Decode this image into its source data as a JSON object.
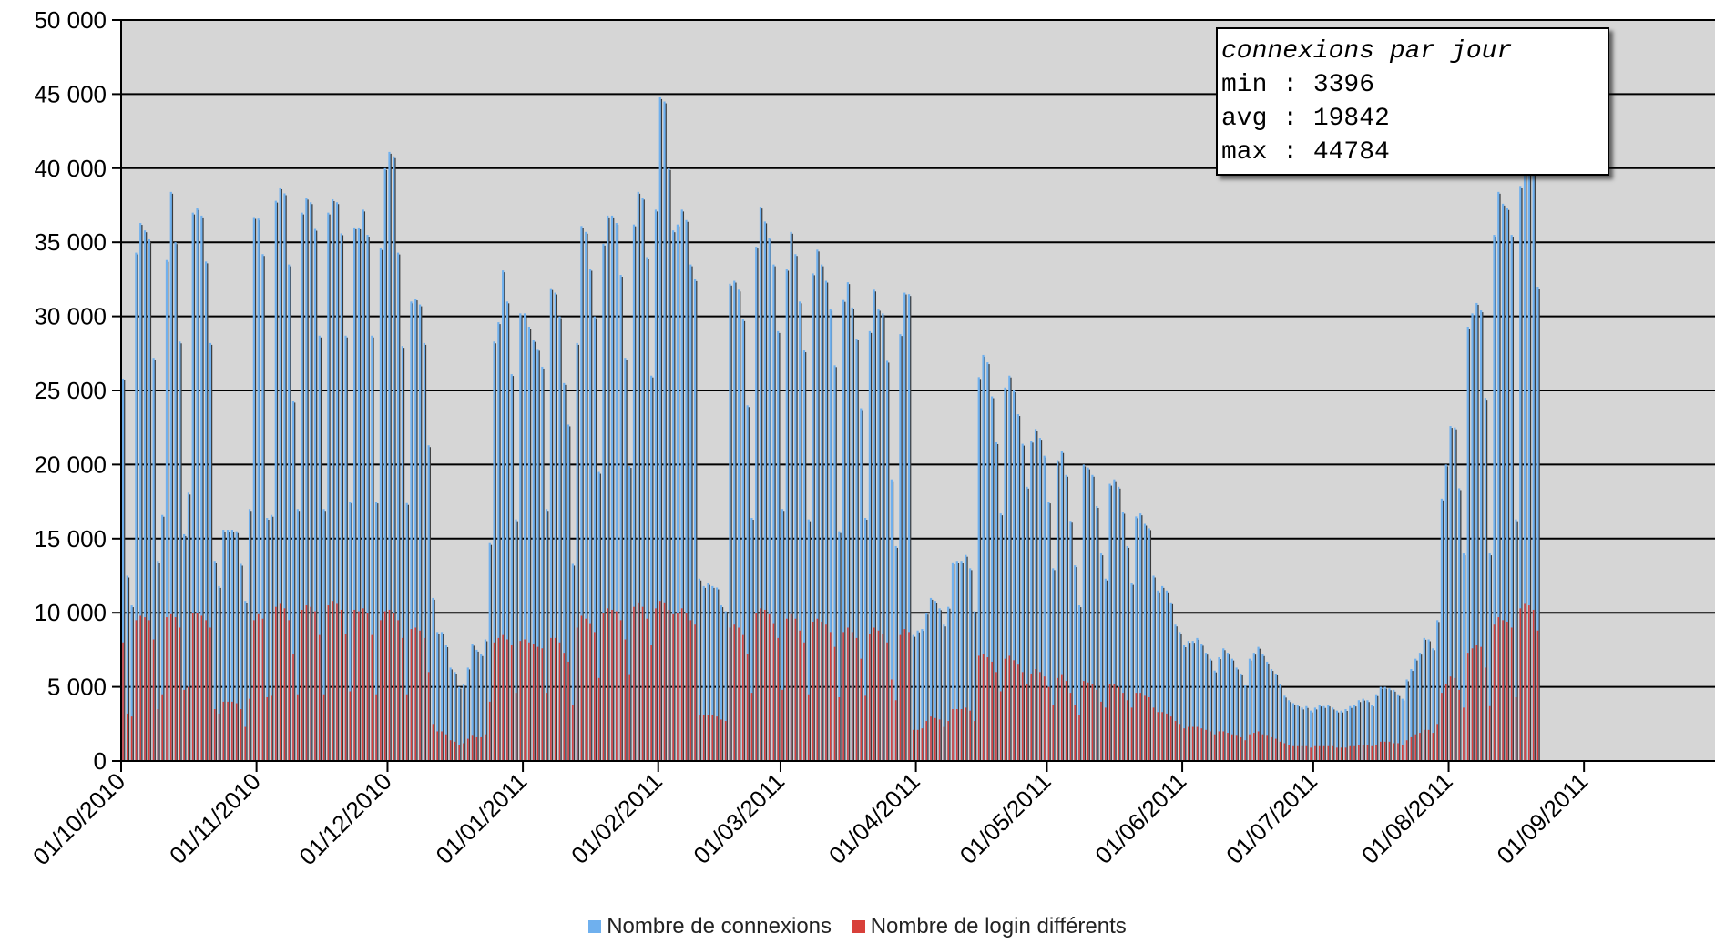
{
  "stats_box": {
    "title": "connexions par jour",
    "min": "min : 3396",
    "avg": "avg : 19842",
    "max": "max : 44784"
  },
  "legend": [
    {
      "label": "Nombre de connexions",
      "color": "#6fb0ee"
    },
    {
      "label": "Nombre de login différents",
      "color": "#d8403a"
    }
  ],
  "chart_data": {
    "type": "bar",
    "xlabel": "",
    "ylabel": "",
    "ylim": [
      0,
      50000
    ],
    "yticks": [
      "0",
      "5 000",
      "10 000",
      "15 000",
      "20 000",
      "25 000",
      "30 000",
      "35 000",
      "40 000",
      "45 000",
      "50 000"
    ],
    "xticks": [
      "01/10/2010",
      "01/11/2010",
      "01/12/2010",
      "01/01/2011",
      "01/02/2011",
      "01/03/2011",
      "01/04/2011",
      "01/05/2011",
      "01/06/2011",
      "01/07/2011",
      "01/08/2011",
      "01/09/2011"
    ],
    "x_start": "2010-10-01",
    "grid": true,
    "background": "#d6d6d6",
    "legend_position": "bottom-center",
    "series": [
      {
        "name": "Nombre de connexions",
        "color": "#6fb0ee"
      },
      {
        "name": "Nombre de login différents",
        "color": "#d8403a"
      }
    ],
    "weekly_peaks": [
      {
        "week_start": "2010-10-01",
        "connexions": [
          25800,
          12500,
          10500,
          34300,
          36300,
          35800,
          35200
        ],
        "logins": [
          8000,
          3200,
          3000,
          9500,
          9800,
          9700,
          9500
        ]
      },
      {
        "week_start": "2010-10-08",
        "connexions": [
          27200,
          13500,
          16600,
          33800,
          38400,
          35000,
          28300
        ],
        "logins": [
          8200,
          3500,
          4500,
          9700,
          9900,
          9700,
          9000
        ]
      },
      {
        "week_start": "2010-10-15",
        "connexions": [
          15300,
          18100,
          37000,
          37300,
          36800,
          33700,
          28200
        ],
        "logins": [
          4800,
          5000,
          10000,
          10000,
          9800,
          9500,
          9000
        ]
      },
      {
        "week_start": "2010-10-22",
        "connexions": [
          13500,
          11800,
          15600,
          15600,
          15600,
          15500,
          13300
        ],
        "logins": [
          3500,
          3200,
          4000,
          4000,
          4000,
          3900,
          3500
        ]
      },
      {
        "week_start": "2010-10-29",
        "connexions": [
          10800,
          17000,
          36700,
          36600,
          34200,
          16400,
          16600
        ],
        "logins": [
          2300,
          4200,
          9500,
          9900,
          9600,
          4300,
          4400
        ]
      },
      {
        "week_start": "2010-11-05",
        "connexions": [
          37800,
          38700,
          38300,
          33500,
          24300,
          17000,
          37000
        ],
        "logins": [
          10400,
          10600,
          10300,
          9500,
          7200,
          4500,
          10200
        ]
      },
      {
        "week_start": "2010-11-12",
        "connexions": [
          38000,
          37700,
          35900,
          28700,
          17000,
          37000,
          37900
        ],
        "logins": [
          10500,
          10400,
          10100,
          8500,
          4500,
          10500,
          10800
        ]
      },
      {
        "week_start": "2010-11-19",
        "connexions": [
          37700,
          35600,
          28700,
          17500,
          36000,
          36000,
          37200
        ],
        "logins": [
          10600,
          10200,
          8600,
          4700,
          10200,
          10100,
          10300
        ]
      },
      {
        "week_start": "2010-11-26",
        "connexions": [
          35500,
          28700,
          17500,
          34600,
          40000,
          41100,
          40800
        ],
        "logins": [
          10000,
          8500,
          4500,
          9500,
          10100,
          10200,
          10000
        ]
      },
      {
        "week_start": "2010-12-03",
        "connexions": [
          34300,
          28000,
          17400,
          31000,
          31200,
          30800,
          28200
        ],
        "logins": [
          9500,
          8300,
          4500,
          8900,
          9000,
          8800,
          8300
        ]
      },
      {
        "week_start": "2010-12-10",
        "connexions": [
          21300,
          11000,
          8700,
          8700,
          7800,
          6300,
          6000
        ],
        "logins": [
          6000,
          2500,
          2000,
          2000,
          1800,
          1400,
          1300
        ]
      },
      {
        "week_start": "2010-12-17",
        "connexions": [
          5000,
          5200,
          6300,
          7900,
          7500,
          7200,
          8200
        ],
        "logins": [
          1100,
          1200,
          1500,
          1700,
          1600,
          1600,
          1800
        ]
      },
      {
        "week_start": "2010-12-24",
        "connexions": [
          14700,
          28300,
          29600,
          33100,
          31000,
          26100,
          16300
        ],
        "logins": [
          4000,
          8000,
          8300,
          8500,
          8200,
          7800,
          4600
        ]
      },
      {
        "week_start": "2010-12-31",
        "connexions": [
          30200,
          30200,
          29300,
          28400,
          27800,
          26600,
          17000
        ],
        "logins": [
          8100,
          8200,
          8000,
          7900,
          7700,
          7600,
          4600
        ]
      },
      {
        "week_start": "2011-01-07",
        "connexions": [
          31900,
          31600,
          30000,
          25500,
          22700,
          13300,
          28200
        ],
        "logins": [
          8300,
          8300,
          8000,
          7300,
          6700,
          3800,
          9000
        ]
      },
      {
        "week_start": "2011-01-14",
        "connexions": [
          36100,
          35700,
          33200,
          30000,
          19500,
          34900,
          36800
        ],
        "logins": [
          9800,
          9600,
          9300,
          8700,
          5600,
          10000,
          10300
        ]
      },
      {
        "week_start": "2011-01-21",
        "connexions": [
          36800,
          36300,
          32800,
          27200,
          19900,
          36200,
          38400
        ],
        "logins": [
          10200,
          10100,
          9500,
          8200,
          5800,
          10400,
          10700
        ]
      },
      {
        "week_start": "2011-01-28",
        "connexions": [
          38000,
          34000,
          26000,
          37200,
          44784,
          44500,
          40000
        ],
        "logins": [
          10400,
          9600,
          7800,
          10300,
          10800,
          10700,
          10200
        ]
      },
      {
        "week_start": "2011-02-04",
        "connexions": [
          35800,
          36200,
          37200,
          36500,
          33500,
          32500,
          12300
        ],
        "logins": [
          9900,
          10000,
          10300,
          10000,
          9500,
          9200,
          3100
        ]
      },
      {
        "week_start": "2011-02-11",
        "connexions": [
          11800,
          12000,
          11800,
          11700,
          10500,
          10100,
          32200
        ],
        "logins": [
          3100,
          3100,
          3100,
          3000,
          2800,
          2700,
          9000
        ]
      },
      {
        "week_start": "2011-02-18",
        "connexions": [
          32400,
          31800,
          29800,
          24000,
          16400,
          34700,
          37400
        ],
        "logins": [
          9200,
          9000,
          8500,
          7200,
          4600,
          10000,
          10300
        ]
      },
      {
        "week_start": "2011-02-25",
        "connexions": [
          36400,
          35300,
          33500,
          29000,
          17000,
          33200,
          35700
        ],
        "logins": [
          10200,
          9900,
          9300,
          8300,
          4800,
          9600,
          9900
        ]
      },
      {
        "week_start": "2011-03-04",
        "connexions": [
          34200,
          31000,
          27700,
          16300,
          32900,
          34500,
          33500
        ],
        "logins": [
          9600,
          8800,
          8000,
          4500,
          9400,
          9600,
          9400
        ]
      },
      {
        "week_start": "2011-03-11",
        "connexions": [
          32400,
          30500,
          26700,
          15500,
          31100,
          32300,
          30600
        ],
        "logins": [
          9200,
          8700,
          7700,
          4300,
          8700,
          9000,
          8700
        ]
      },
      {
        "week_start": "2011-03-18",
        "connexions": [
          28500,
          23800,
          16400,
          29000,
          31800,
          30500,
          30200
        ],
        "logins": [
          8300,
          6900,
          4400,
          8600,
          9000,
          8800,
          8600
        ]
      },
      {
        "week_start": "2011-03-25",
        "connexions": [
          27000,
          19000,
          14500,
          28800,
          31600,
          31500,
          8500
        ],
        "logins": [
          8000,
          5500,
          4100,
          8500,
          8900,
          8700,
          2100
        ]
      },
      {
        "week_start": "2011-04-01",
        "connexions": [
          8800,
          8900,
          10000,
          11000,
          10800,
          10300,
          9200
        ],
        "logins": [
          2100,
          2200,
          2700,
          3000,
          2900,
          2800,
          2300
        ]
      },
      {
        "week_start": "2011-04-08",
        "connexions": [
          10400,
          13400,
          13500,
          13500,
          13900,
          13000,
          10100
        ],
        "logins": [
          2700,
          3500,
          3500,
          3500,
          3600,
          3400,
          2700
        ]
      },
      {
        "week_start": "2011-04-15",
        "connexions": [
          25900,
          27400,
          26900,
          24600,
          21500,
          16700,
          25200
        ],
        "logins": [
          7100,
          7200,
          7000,
          6700,
          6000,
          4700,
          6900
        ]
      },
      {
        "week_start": "2011-04-22",
        "connexions": [
          26000,
          25000,
          23400,
          21400,
          18500,
          21600,
          22400
        ],
        "logins": [
          7100,
          6800,
          6500,
          6000,
          5200,
          5900,
          6200
        ]
      },
      {
        "week_start": "2011-04-29",
        "connexions": [
          21800,
          20600,
          17500,
          13000,
          20300,
          20900,
          19300
        ],
        "logins": [
          6000,
          5700,
          5000,
          3800,
          5600,
          5800,
          5400
        ]
      },
      {
        "week_start": "2011-05-06",
        "connexions": [
          16200,
          13200,
          10500,
          20000,
          19800,
          19300,
          17200
        ],
        "logins": [
          4600,
          3800,
          3100,
          5400,
          5300,
          5200,
          4800
        ]
      },
      {
        "week_start": "2011-05-13",
        "connexions": [
          14000,
          12300,
          18700,
          19000,
          18500,
          16800,
          14500
        ],
        "logins": [
          4000,
          3600,
          5200,
          5200,
          5000,
          4600,
          4100
        ]
      },
      {
        "week_start": "2011-05-20",
        "connexions": [
          12000,
          16500,
          16700,
          16000,
          15700,
          12500,
          11500
        ],
        "logins": [
          3600,
          4600,
          4600,
          4400,
          4300,
          3600,
          3300
        ]
      },
      {
        "week_start": "2011-05-27",
        "connexions": [
          11800,
          11500,
          10700,
          9200,
          8700,
          7800,
          8100
        ],
        "logins": [
          3300,
          3200,
          3000,
          2700,
          2500,
          2200,
          2300
        ]
      },
      {
        "week_start": "2011-06-03",
        "connexions": [
          8100,
          8300,
          7900,
          7300,
          6900,
          6100,
          7000
        ],
        "logins": [
          2300,
          2300,
          2200,
          2100,
          2000,
          1800,
          2000
        ]
      },
      {
        "week_start": "2011-06-10",
        "connexions": [
          7600,
          7300,
          6900,
          6300,
          5900,
          5100,
          6900
        ],
        "logins": [
          2000,
          1900,
          1800,
          1700,
          1600,
          1400,
          1800
        ]
      },
      {
        "week_start": "2011-06-17",
        "connexions": [
          7300,
          7700,
          7200,
          6700,
          6200,
          5900,
          5200
        ],
        "logins": [
          1900,
          2000,
          1800,
          1700,
          1600,
          1500,
          1300
        ]
      },
      {
        "week_start": "2011-06-24",
        "connexions": [
          4400,
          4100,
          3900,
          3800,
          3600,
          3700,
          3400
        ],
        "logins": [
          1200,
          1100,
          1000,
          1000,
          1000,
          1000,
          900
        ]
      },
      {
        "week_start": "2011-07-01",
        "connexions": [
          3600,
          3800,
          3700,
          3800,
          3600,
          3400,
          3396
        ],
        "logins": [
          1000,
          1000,
          1000,
          1000,
          1000,
          900,
          900
        ]
      },
      {
        "week_start": "2011-07-08",
        "connexions": [
          3500,
          3700,
          3800,
          4100,
          4200,
          4100,
          3800
        ],
        "logins": [
          900,
          1000,
          1000,
          1100,
          1100,
          1100,
          1000
        ]
      },
      {
        "week_start": "2011-07-15",
        "connexions": [
          4500,
          5000,
          5000,
          4900,
          4800,
          4500,
          4200
        ],
        "logins": [
          1100,
          1300,
          1300,
          1300,
          1200,
          1200,
          1100
        ]
      },
      {
        "week_start": "2011-07-22",
        "connexions": [
          5500,
          6200,
          6900,
          7300,
          8300,
          8200,
          7600
        ],
        "logins": [
          1400,
          1600,
          1800,
          1900,
          2100,
          2100,
          1900
        ]
      },
      {
        "week_start": "2011-07-29",
        "connexions": [
          9500,
          17700,
          20000,
          22600,
          22500,
          18400,
          14000
        ],
        "logins": [
          2500,
          4600,
          5200,
          5700,
          5600,
          4800,
          3600
        ]
      },
      {
        "week_start": "2011-08-05",
        "connexions": [
          29300,
          30200,
          30900,
          30400,
          24500,
          14000,
          35500
        ],
        "logins": [
          7300,
          7600,
          7800,
          7700,
          6300,
          3700,
          9200
        ]
      },
      {
        "week_start": "2011-08-12",
        "connexions": [
          38400,
          37600,
          37300,
          35500,
          16300,
          38800,
          41200
        ],
        "logins": [
          9700,
          9500,
          9400,
          9000,
          4300,
          10300,
          10600
        ]
      },
      {
        "week_start": "2011-08-19",
        "connexions": [
          40900,
          40000,
          32000
        ],
        "logins": [
          10500,
          10200,
          8800
        ]
      }
    ]
  }
}
